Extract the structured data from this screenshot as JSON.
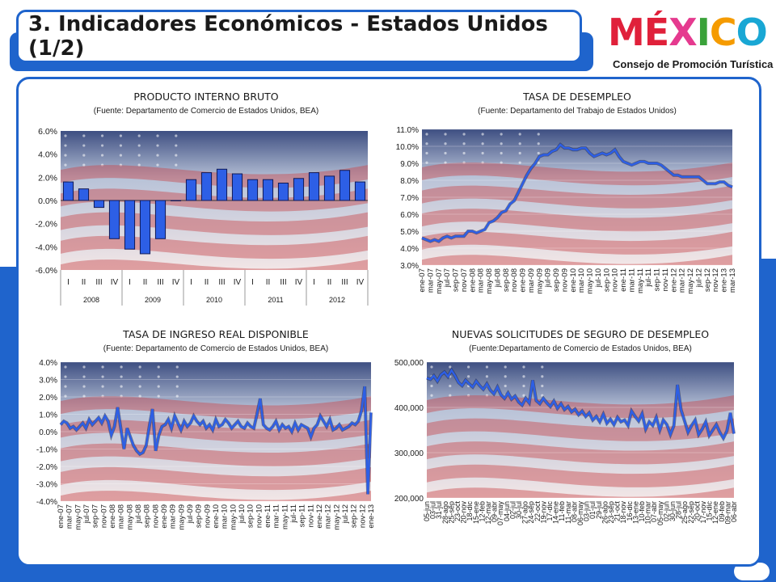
{
  "header": {
    "title": "3. Indicadores Económicos - Estados Unidos (1/2)"
  },
  "logo": {
    "word_letters": [
      {
        "ch": "M",
        "color": "#e0203a"
      },
      {
        "ch": "É",
        "color": "#e0203a"
      },
      {
        "ch": "X",
        "color": "#e53a8f"
      },
      {
        "ch": "I",
        "color": "#3aa23a"
      },
      {
        "ch": "C",
        "color": "#f59b00"
      },
      {
        "ch": "O",
        "color": "#19a7d4"
      }
    ],
    "subtitle": "Consejo de Promoción Turística"
  },
  "colors": {
    "accent": "#1f64cc",
    "bar": "#2d5fe6",
    "line": "#2d5fe6"
  },
  "chart_data": [
    {
      "id": "pib",
      "type": "bar",
      "title": "PRODUCTO INTERNO BRUTO",
      "subtitle": "(Fuente: Departamento de Comercio de Estados Unidos, BEA)",
      "ylim": [
        -6,
        6
      ],
      "yticks": [
        "6.0%",
        "4.0%",
        "2.0%",
        "0.0%",
        "-2.0%",
        "-4.0%",
        "-6.0%"
      ],
      "quarters": [
        "I",
        "II",
        "III",
        "IV"
      ],
      "years": [
        "2008",
        "2009",
        "2010",
        "2011",
        "2012"
      ],
      "values": [
        1.6,
        1.0,
        -0.6,
        -3.3,
        -4.2,
        -4.6,
        -3.3,
        0,
        1.8,
        2.4,
        2.7,
        2.3,
        1.8,
        1.8,
        1.5,
        1.9,
        2.4,
        2.1,
        2.6,
        1.6
      ]
    },
    {
      "id": "desempleo",
      "type": "line",
      "title": "TASA DE DESEMPLEO",
      "subtitle": "(Fuente: Departamento del Trabajo de Estados Unidos)",
      "ylim": [
        3,
        11
      ],
      "yticks": [
        "11.0%",
        "10.0%",
        "9.0%",
        "8.0%",
        "7.0%",
        "6.0%",
        "5.0%",
        "4.0%",
        "3.0%"
      ],
      "xlabels": [
        "ene-07",
        "mar-07",
        "may-07",
        "jul-07",
        "sep-07",
        "nov-07",
        "ene-08",
        "mar-08",
        "may-08",
        "jul-08",
        "sep-08",
        "nov-08",
        "ene-09",
        "mar-09",
        "may-09",
        "jul-09",
        "sep-09",
        "nov-09",
        "ene-10",
        "mar-10",
        "may-10",
        "jul-10",
        "sep-10",
        "nov-10",
        "ene-11",
        "mar-11",
        "may-11",
        "jul-11",
        "sep-11",
        "nov-11",
        "ene-12",
        "mar-12",
        "may-12",
        "jul-12",
        "sep-12",
        "nov-12",
        "ene-13",
        "mar-13"
      ],
      "values": [
        4.6,
        4.5,
        4.4,
        4.5,
        4.4,
        4.6,
        4.7,
        4.6,
        4.7,
        4.7,
        4.7,
        5.0,
        5.0,
        4.9,
        5.0,
        5.1,
        5.5,
        5.6,
        5.8,
        6.1,
        6.2,
        6.6,
        6.8,
        7.3,
        7.8,
        8.3,
        8.7,
        9.0,
        9.4,
        9.5,
        9.5,
        9.7,
        9.8,
        10.1,
        9.9,
        9.9,
        9.8,
        9.8,
        9.9,
        9.9,
        9.6,
        9.4,
        9.5,
        9.6,
        9.5,
        9.6,
        9.8,
        9.4,
        9.1,
        9.0,
        8.9,
        9.0,
        9.1,
        9.1,
        9.0,
        9.0,
        9.0,
        8.9,
        8.7,
        8.5,
        8.3,
        8.3,
        8.2,
        8.2,
        8.2,
        8.2,
        8.2,
        8.0,
        7.8,
        7.8,
        7.8,
        7.9,
        7.9,
        7.7,
        7.6
      ]
    },
    {
      "id": "ingreso",
      "type": "line",
      "title": "TASA DE INGRESO REAL DISPONIBLE",
      "subtitle": "(Fuente: Departamento de Comercio de Estados Unidos, BEA)",
      "ylim": [
        -4,
        4
      ],
      "yticks": [
        "4.0%",
        "3.0%",
        "2.0%",
        "1.0%",
        "0.0%",
        "-1.0%",
        "-2.0%",
        "-3.0%",
        "-4.0%"
      ],
      "xlabels": [
        "ene-07",
        "mar-07",
        "may-07",
        "jul-07",
        "sep-07",
        "nov-07",
        "ene-08",
        "mar-08",
        "may-08",
        "jul-08",
        "sep-08",
        "nov-08",
        "ene-09",
        "mar-09",
        "may-09",
        "jul-09",
        "sep-09",
        "nov-09",
        "ene-10",
        "mar-10",
        "may-10",
        "jul-10",
        "sep-10",
        "nov-10",
        "ene-11",
        "mar-11",
        "may-11",
        "jul-11",
        "sep-11",
        "nov-11",
        "ene-12",
        "mar-12",
        "may-12",
        "jul-12",
        "sep-12",
        "nov-12",
        "ene-13"
      ],
      "values": [
        0.4,
        0.6,
        0.5,
        0.2,
        0.3,
        0.1,
        0.3,
        0.5,
        0.2,
        0.7,
        0.4,
        0.6,
        0.8,
        0.5,
        0.9,
        0.6,
        -0.2,
        0.3,
        1.4,
        0.2,
        -1.0,
        0.2,
        -0.3,
        -0.8,
        -1.1,
        -1.3,
        -1.2,
        -0.8,
        0.3,
        1.3,
        -1.1,
        -0.2,
        0.3,
        0.4,
        0.7,
        0.2,
        0.9,
        0.5,
        0.1,
        0.6,
        0.3,
        0.5,
        0.9,
        0.6,
        0.4,
        0.6,
        0.2,
        0.4,
        0.1,
        0.7,
        0.3,
        0.4,
        0.7,
        0.5,
        0.2,
        0.4,
        0.6,
        0.3,
        0.2,
        0.5,
        0.3,
        0.2,
        1.0,
        1.9,
        0.4,
        0.2,
        0.1,
        0.3,
        0.6,
        0.1,
        0.4,
        0.2,
        0.3,
        0.0,
        0.5,
        0.1,
        0.4,
        0.3,
        0.2,
        -0.3,
        0.2,
        0.4,
        0.9,
        0.6,
        0.3,
        0.7,
        0.1,
        0.2,
        0.4,
        0.1,
        0.2,
        0.3,
        0.5,
        0.4,
        0.6,
        1.2,
        2.6,
        -3.6,
        1.1
      ]
    },
    {
      "id": "solicitudes",
      "type": "line",
      "title": "NUEVAS SOLICITUDES DE SEGURO DE DESEMPLEO",
      "subtitle": "(Fuente:Departamento de Comercio de Estados Unidos, BEA)",
      "ylim": [
        200000,
        500000
      ],
      "yticks": [
        "500,000",
        "400,000",
        "300,000",
        "200,000"
      ],
      "xlabels": [
        "05-jun",
        "03-jul",
        "31-jul",
        "28-ago",
        "25-sep",
        "23-oct",
        "20-nov",
        "18-dic",
        "15-ene",
        "12-feb",
        "12-mar",
        "09-abr",
        "07-may",
        "04-jun",
        "02-jul",
        "30-jul",
        "27-ago",
        "24-sep",
        "22-oct",
        "19-nov",
        "17-dic",
        "14-ene",
        "11-feb",
        "11-mar",
        "08-abr",
        "06-may",
        "03-jun",
        "01-jul",
        "29-jul",
        "26-ago",
        "23-sep",
        "21-oct",
        "18-nov",
        "16-dic",
        "13-ene",
        "10-feb",
        "10-mar",
        "07-abr",
        "05-may",
        "02-jun",
        "30-jun",
        "28-jul",
        "25-ago",
        "22-sep",
        "20-oct",
        "17-nov",
        "15-dic",
        "12-ene",
        "09-feb",
        "09-mar",
        "06-abr"
      ],
      "values": [
        465000,
        462000,
        470000,
        458000,
        472000,
        478000,
        468000,
        482000,
        470000,
        455000,
        448000,
        460000,
        452000,
        445000,
        458000,
        448000,
        440000,
        452000,
        438000,
        430000,
        445000,
        428000,
        420000,
        432000,
        418000,
        425000,
        412000,
        405000,
        420000,
        410000,
        460000,
        415000,
        408000,
        420000,
        410000,
        402000,
        414000,
        398000,
        408000,
        395000,
        402000,
        390000,
        396000,
        384000,
        392000,
        380000,
        388000,
        372000,
        380000,
        368000,
        385000,
        365000,
        374000,
        362000,
        378000,
        368000,
        372000,
        360000,
        392000,
        380000,
        370000,
        386000,
        352000,
        368000,
        360000,
        378000,
        350000,
        372000,
        362000,
        340000,
        360000,
        450000,
        395000,
        370000,
        345000,
        360000,
        372000,
        340000,
        352000,
        368000,
        338000,
        350000,
        362000,
        345000,
        332000,
        348000,
        388000,
        342000
      ]
    }
  ]
}
